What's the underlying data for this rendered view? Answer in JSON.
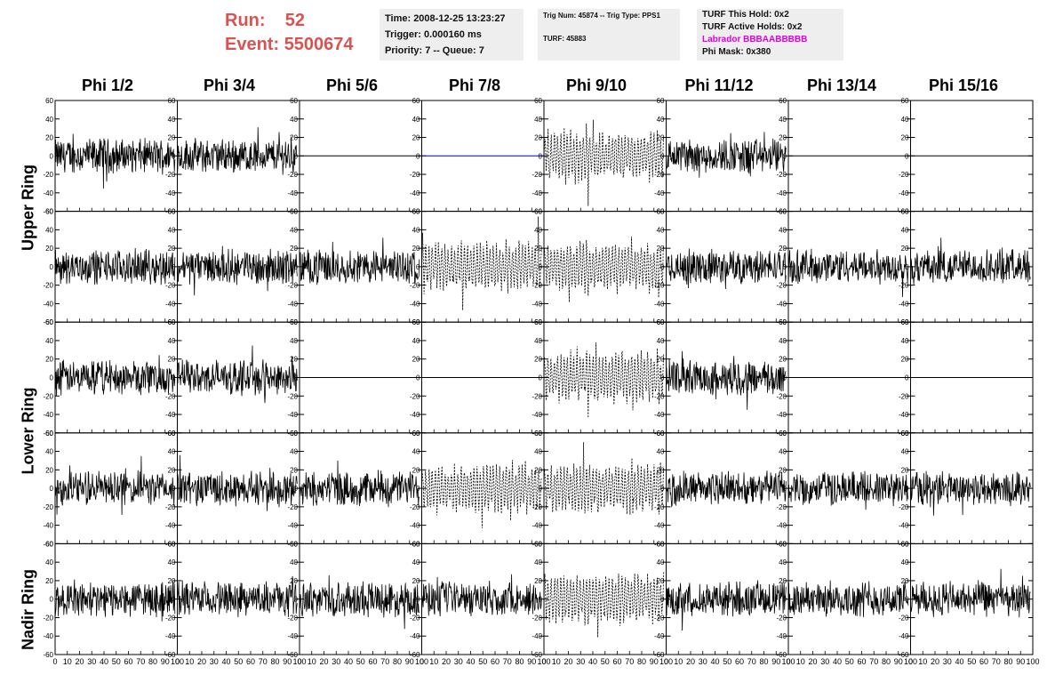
{
  "header": {
    "run_label": "Run:",
    "run_value": "52",
    "event_label": "Event:",
    "event_value": "5500674",
    "time": "Time: 2008-12-25 13:23:27",
    "trigger": "Trigger: 0.000160 ms",
    "priority": "Priority: 7 -- Queue: 7",
    "trig_num": "Trig Num: 45874 -- Trig Type: PPS1",
    "turf": "TURF: 45883",
    "turf_this_hold": "TURF This Hold: 0x2",
    "turf_active_holds": "TURF Active Holds: 0x2",
    "labrador": "Labrador BBBAABBBBB",
    "phi_mask": "Phi Mask: 0x380"
  },
  "colors": {
    "title_red": "#d9534f",
    "labrador_magenta": "#e000e0",
    "flat_blue": "#0000cc",
    "panel_bg": "#eeeeee"
  },
  "phi_headers": [
    "Phi 1/2",
    "Phi 3/4",
    "Phi 5/6",
    "Phi 7/8",
    "Phi 9/10",
    "Phi 11/12",
    "Phi 13/14",
    "Phi 15/16"
  ],
  "ring_labels": [
    "Upper Ring",
    "Lower Ring",
    "Nadir Ring"
  ],
  "chart_data": {
    "type": "line",
    "xlim": [
      0,
      100
    ],
    "ylim": [
      -60,
      60
    ],
    "ytick_labels": [
      "60",
      "40",
      "20",
      "0",
      "-20",
      "-40",
      "-60"
    ],
    "xtick_labels": [
      "0",
      "10",
      "20",
      "30",
      "40",
      "50",
      "60",
      "70",
      "80",
      "90",
      "100"
    ],
    "rows": 5,
    "cols": 8,
    "panel_styles": [
      [
        "noise",
        "noise",
        "flat",
        "flat_blue",
        "dashed",
        "noise",
        "flat",
        "flat"
      ],
      [
        "noise",
        "noise",
        "noise",
        "dashed",
        "dashed",
        "noise",
        "noise",
        "noise"
      ],
      [
        "noise",
        "noise",
        "flat",
        "flat",
        "dashed",
        "noise",
        "flat",
        "flat"
      ],
      [
        "noise",
        "noise",
        "noise",
        "dashed",
        "dashed",
        "noise",
        "noise",
        "noise"
      ],
      [
        "noise",
        "noise",
        "noise",
        "noise",
        "dashed",
        "noise",
        "noise",
        "noise"
      ]
    ]
  }
}
